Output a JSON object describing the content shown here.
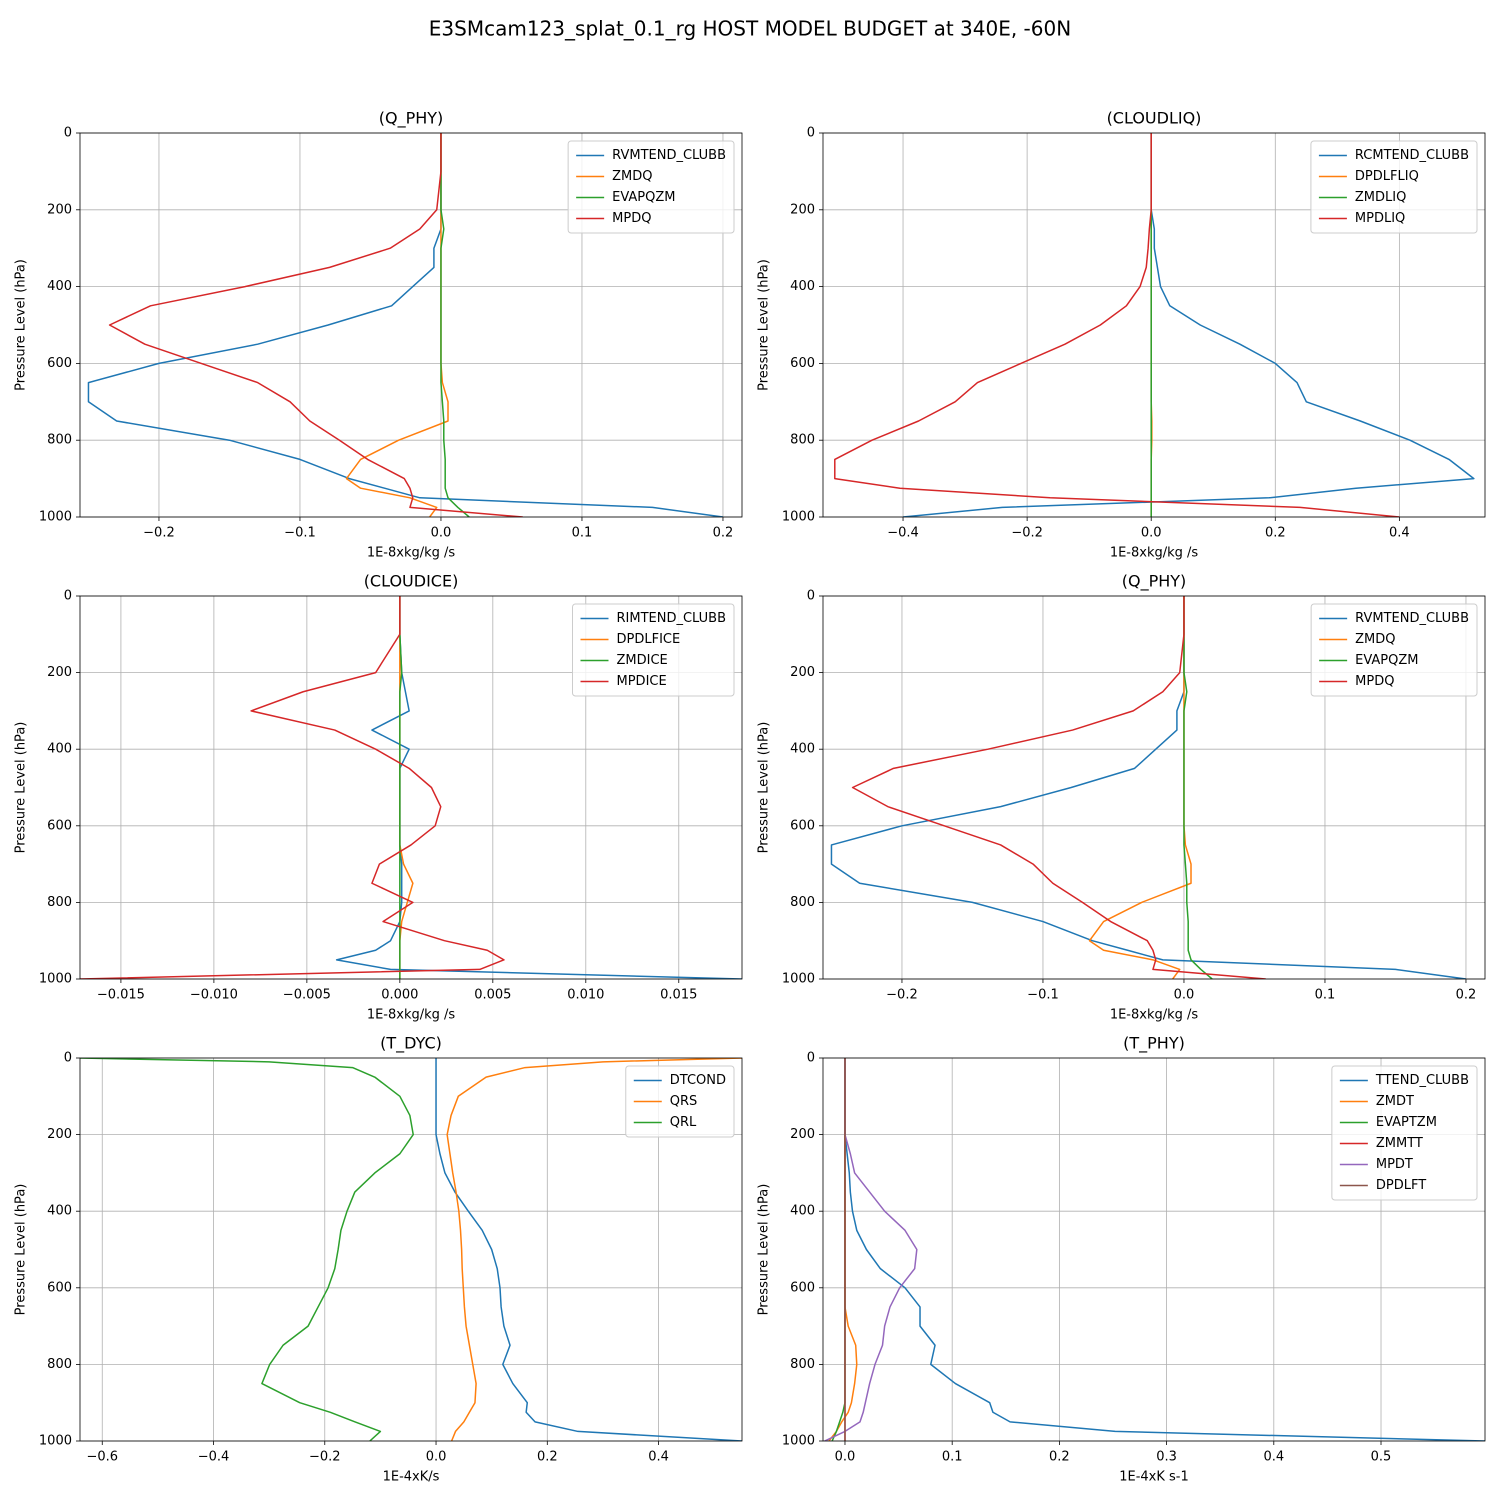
{
  "title": "E3SMcam123_splat_0.1_rg HOST MODEL BUDGET at 340E, -60N",
  "chart_data": [
    {
      "type": "line",
      "title": "(Q_PHY)",
      "xlabel": "1E-8xkg/kg /s",
      "ylabel": "Pressure Level (hPa)",
      "y": [
        0,
        100,
        200,
        250,
        300,
        350,
        400,
        450,
        500,
        550,
        600,
        650,
        700,
        750,
        800,
        850,
        900,
        925,
        950,
        975,
        1000
      ],
      "xlim": [
        -0.256,
        0.2135
      ],
      "ylim": [
        1000,
        0
      ],
      "xticks": [
        {
          "value": -0.2,
          "label": "−0.2"
        },
        {
          "value": -0.1,
          "label": "−0.1"
        },
        {
          "value": 0,
          "label": "0.0"
        },
        0.1,
        0.2
      ],
      "yticks": [
        0,
        200,
        400,
        600,
        800,
        1000
      ],
      "grid": true,
      "legend": "upper right",
      "series": [
        {
          "name": "RVMTEND_CLUBB",
          "color": "#1f77b4",
          "values": [
            0,
            0,
            0,
            0,
            -0.005,
            -0.005,
            -0.02,
            -0.035,
            -0.08,
            -0.13,
            -0.2,
            -0.25,
            -0.25,
            -0.23,
            -0.15,
            -0.1,
            -0.065,
            -0.04,
            -0.015,
            0.15,
            0.2
          ]
        },
        {
          "name": "ZMDQ",
          "color": "#ff7f0e",
          "values": [
            0,
            0,
            0,
            0,
            0,
            0,
            0,
            0,
            0,
            0,
            0,
            0.001,
            0.005,
            0.005,
            -0.03,
            -0.057,
            -0.067,
            -0.057,
            -0.022,
            -0.003,
            -0.008
          ]
        },
        {
          "name": "EVAPQZM",
          "color": "#2ca02c",
          "values": [
            0,
            0,
            0,
            0.002,
            0,
            0,
            0,
            0,
            0,
            0,
            0,
            0,
            0.001,
            0.002,
            0.002,
            0.003,
            0.003,
            0.003,
            0.005,
            0.012,
            0.02
          ]
        },
        {
          "name": "MPDQ",
          "color": "#d62728",
          "values": [
            0,
            0,
            -0.003,
            -0.015,
            -0.036,
            -0.079,
            -0.139,
            -0.206,
            -0.235,
            -0.21,
            -0.17,
            -0.13,
            -0.107,
            -0.093,
            -0.072,
            -0.052,
            -0.026,
            -0.022,
            -0.02,
            -0.022,
            0.058
          ]
        }
      ]
    },
    {
      "type": "line",
      "title": "(CLOUDLIQ)",
      "xlabel": "1E-8xkg/kg /s",
      "ylabel": "Pressure Level (hPa)",
      "y": [
        0,
        100,
        200,
        250,
        300,
        350,
        400,
        450,
        500,
        550,
        600,
        650,
        700,
        750,
        800,
        850,
        900,
        925,
        950,
        975,
        1000
      ],
      "xlim": [
        -0.529,
        0.538
      ],
      "ylim": [
        1000,
        0
      ],
      "xticks": [
        {
          "value": -0.4,
          "label": "−0.4"
        },
        {
          "value": -0.2,
          "label": "−0.2"
        },
        {
          "value": 0,
          "label": "0.0"
        },
        0.2,
        0.4
      ],
      "yticks": [
        0,
        200,
        400,
        600,
        800,
        1000
      ],
      "grid": true,
      "legend": "upper right",
      "series": [
        {
          "name": "RCMTEND_CLUBB",
          "color": "#1f77b4",
          "values": [
            0,
            0,
            0,
            0.005,
            0.005,
            0.01,
            0.015,
            0.03,
            0.079,
            0.143,
            0.2,
            0.235,
            0.25,
            0.337,
            0.417,
            0.48,
            0.52,
            0.33,
            0.19,
            -0.24,
            -0.4
          ]
        },
        {
          "name": "DPDLFLIQ",
          "color": "#ff7f0e",
          "values": [
            0,
            0,
            0,
            0,
            0,
            0,
            0,
            0,
            0,
            0,
            0,
            0,
            0,
            0.001,
            0.001,
            0,
            0,
            0,
            0,
            0,
            0
          ]
        },
        {
          "name": "ZMDLIQ",
          "color": "#2ca02c",
          "values": [
            0,
            0,
            0,
            0,
            0,
            0,
            0,
            0,
            0,
            0,
            0,
            0,
            0,
            0,
            0,
            0,
            0,
            0,
            0,
            0,
            0
          ]
        },
        {
          "name": "MPDLIQ",
          "color": "#d62728",
          "values": [
            0,
            0,
            0,
            -0.003,
            -0.005,
            -0.008,
            -0.018,
            -0.04,
            -0.082,
            -0.139,
            -0.21,
            -0.28,
            -0.316,
            -0.375,
            -0.45,
            -0.51,
            -0.51,
            -0.405,
            -0.163,
            0.24,
            0.4
          ]
        }
      ]
    },
    {
      "type": "line",
      "title": "(CLOUDICE)",
      "xlabel": "1E-8xkg/kg /s",
      "ylabel": "Pressure Level (hPa)",
      "y": [
        0,
        100,
        200,
        250,
        300,
        350,
        400,
        450,
        500,
        550,
        600,
        650,
        700,
        750,
        800,
        850,
        900,
        925,
        950,
        975,
        1000
      ],
      "xlim": [
        -0.0172,
        0.0184
      ],
      "ylim": [
        1000,
        0
      ],
      "xticks": [
        {
          "value": -0.015,
          "label": "−0.015"
        },
        {
          "value": -0.01,
          "label": "−0.010"
        },
        {
          "value": -0.005,
          "label": "−0.005"
        },
        {
          "value": 0,
          "label": "0.000"
        },
        0.005,
        {
          "value": 0.01,
          "label": "0.010"
        },
        0.015
      ],
      "yticks": [
        0,
        200,
        400,
        600,
        800,
        1000
      ],
      "grid": true,
      "legend": "upper right",
      "series": [
        {
          "name": "RIMTEND_CLUBB",
          "color": "#1f77b4",
          "values": [
            0,
            0,
            0.0001,
            0.0003,
            0.0005,
            -0.0015,
            0.0005,
            0,
            0,
            0,
            0,
            0,
            0.0001,
            0.0001,
            0.0001,
            0,
            -0.0005,
            -0.0013,
            -0.0034,
            -0.0005,
            0.0184
          ]
        },
        {
          "name": "DPDLFICE",
          "color": "#ff7f0e",
          "values": [
            0,
            0,
            0,
            0,
            0,
            0,
            0,
            0,
            0,
            0,
            0,
            0,
            0.0002,
            0.0007,
            0.0004,
            0.0001,
            0,
            0,
            0,
            0,
            0
          ]
        },
        {
          "name": "ZMDICE",
          "color": "#2ca02c",
          "values": [
            0,
            0,
            0.0001,
            0,
            0,
            0,
            0,
            0,
            0,
            0,
            0,
            0,
            0,
            0,
            0,
            0,
            0,
            0,
            0,
            0,
            0
          ]
        },
        {
          "name": "MPDICE",
          "color": "#d62728",
          "values": [
            0,
            0,
            -0.0013,
            -0.0052,
            -0.008,
            -0.0035,
            -0.0013,
            0.0005,
            0.0017,
            0.0022,
            0.0019,
            0.0006,
            -0.0011,
            -0.0015,
            0.0007,
            -0.0009,
            0.0024,
            0.0047,
            0.0056,
            0.0043,
            -0.0172
          ]
        }
      ]
    },
    {
      "type": "line",
      "title": "(Q_PHY)",
      "xlabel": "1E-8xkg/kg /s",
      "ylabel": "Pressure Level (hPa)",
      "y": [
        0,
        100,
        200,
        250,
        300,
        350,
        400,
        450,
        500,
        550,
        600,
        650,
        700,
        750,
        800,
        850,
        900,
        925,
        950,
        975,
        1000
      ],
      "xlim": [
        -0.256,
        0.2135
      ],
      "ylim": [
        1000,
        0
      ],
      "xticks": [
        {
          "value": -0.2,
          "label": "−0.2"
        },
        {
          "value": -0.1,
          "label": "−0.1"
        },
        {
          "value": 0,
          "label": "0.0"
        },
        0.1,
        0.2
      ],
      "yticks": [
        0,
        200,
        400,
        600,
        800,
        1000
      ],
      "grid": true,
      "legend": "upper right",
      "series": [
        {
          "name": "RVMTEND_CLUBB",
          "color": "#1f77b4",
          "values": [
            0,
            0,
            0,
            0,
            -0.005,
            -0.005,
            -0.02,
            -0.035,
            -0.08,
            -0.13,
            -0.2,
            -0.25,
            -0.25,
            -0.23,
            -0.15,
            -0.1,
            -0.065,
            -0.04,
            -0.015,
            0.15,
            0.2
          ]
        },
        {
          "name": "ZMDQ",
          "color": "#ff7f0e",
          "values": [
            0,
            0,
            0,
            0,
            0,
            0,
            0,
            0,
            0,
            0,
            0,
            0.001,
            0.005,
            0.005,
            -0.03,
            -0.057,
            -0.067,
            -0.057,
            -0.022,
            -0.003,
            -0.008
          ]
        },
        {
          "name": "EVAPQZM",
          "color": "#2ca02c",
          "values": [
            0,
            0,
            0,
            0.002,
            0,
            0,
            0,
            0,
            0,
            0,
            0,
            0,
            0.001,
            0.002,
            0.002,
            0.003,
            0.003,
            0.003,
            0.005,
            0.012,
            0.02
          ]
        },
        {
          "name": "MPDQ",
          "color": "#d62728",
          "values": [
            0,
            0,
            -0.003,
            -0.015,
            -0.036,
            -0.079,
            -0.139,
            -0.206,
            -0.235,
            -0.21,
            -0.17,
            -0.13,
            -0.107,
            -0.093,
            -0.072,
            -0.052,
            -0.026,
            -0.022,
            -0.02,
            -0.022,
            0.058
          ]
        }
      ]
    },
    {
      "type": "line",
      "title": "(T_DYC)",
      "xlabel": "1E-4xK/s",
      "ylabel": "Pressure Level (hPa)",
      "y": [
        0,
        10,
        25,
        50,
        100,
        150,
        200,
        250,
        300,
        350,
        400,
        450,
        500,
        550,
        600,
        650,
        700,
        750,
        800,
        850,
        900,
        925,
        950,
        975,
        1000
      ],
      "xlim": [
        -0.64,
        0.55
      ],
      "ylim": [
        1000,
        0
      ],
      "xticks": [
        {
          "value": -0.6,
          "label": "−0.6"
        },
        {
          "value": -0.4,
          "label": "−0.4"
        },
        {
          "value": -0.2,
          "label": "−0.2"
        },
        {
          "value": 0,
          "label": "0.0"
        },
        0.2,
        0.4
      ],
      "yticks": [
        0,
        200,
        400,
        600,
        800,
        1000
      ],
      "grid": true,
      "legend": "upper right",
      "series": [
        {
          "name": "DTCOND",
          "color": "#1f77b4",
          "values": [
            0,
            0,
            0,
            0,
            0,
            0,
            0,
            0.007,
            0.016,
            0.034,
            0.058,
            0.083,
            0.1,
            0.11,
            0.115,
            0.117,
            0.122,
            0.133,
            0.12,
            0.138,
            0.164,
            0.162,
            0.178,
            0.255,
            0.55
          ]
        },
        {
          "name": "QRS",
          "color": "#ff7f0e",
          "values": [
            0.55,
            0.3,
            0.16,
            0.09,
            0.04,
            0.027,
            0.02,
            0.025,
            0.03,
            0.036,
            0.041,
            0.044,
            0.046,
            0.047,
            0.049,
            0.051,
            0.054,
            0.06,
            0.066,
            0.072,
            0.07,
            0.06,
            0.05,
            0.035,
            0.028
          ]
        },
        {
          "name": "QRL",
          "color": "#2ca02c",
          "values": [
            -0.64,
            -0.3,
            -0.15,
            -0.11,
            -0.065,
            -0.047,
            -0.041,
            -0.065,
            -0.11,
            -0.146,
            -0.16,
            -0.171,
            -0.176,
            -0.182,
            -0.194,
            -0.212,
            -0.23,
            -0.275,
            -0.299,
            -0.313,
            -0.245,
            -0.19,
            -0.146,
            -0.1,
            -0.119
          ]
        }
      ]
    },
    {
      "type": "line",
      "title": "(T_PHY)",
      "xlabel": "1E-4xK s-1",
      "ylabel": "Pressure Level (hPa)",
      "y": [
        0,
        100,
        200,
        250,
        300,
        350,
        400,
        450,
        500,
        550,
        600,
        650,
        700,
        750,
        800,
        850,
        900,
        925,
        950,
        975,
        1000
      ],
      "xlim": [
        -0.0205,
        0.597
      ],
      "ylim": [
        1000,
        0
      ],
      "xticks": [
        {
          "value": 0,
          "label": "0.0"
        },
        0.1,
        0.2,
        0.3,
        0.4,
        0.5
      ],
      "yticks": [
        0,
        200,
        400,
        600,
        800,
        1000
      ],
      "grid": true,
      "legend": "upper right",
      "series": [
        {
          "name": "TTEND_CLUBB",
          "color": "#1f77b4",
          "values": [
            0,
            0,
            0,
            0.002,
            0.004,
            0.005,
            0.007,
            0.011,
            0.02,
            0.033,
            0.056,
            0.07,
            0.07,
            0.084,
            0.08,
            0.103,
            0.135,
            0.138,
            0.154,
            0.252,
            0.597
          ]
        },
        {
          "name": "ZMDT",
          "color": "#ff7f0e",
          "values": [
            0,
            0,
            0,
            0,
            0,
            0,
            0,
            0,
            0,
            0,
            0,
            0,
            0.003,
            0.01,
            0.011,
            0.009,
            0.006,
            0.003,
            -0.003,
            -0.008,
            -0.015
          ]
        },
        {
          "name": "EVAPTZM",
          "color": "#2ca02c",
          "values": [
            0,
            0,
            0,
            0,
            0,
            0,
            0,
            0,
            0,
            0,
            0,
            0,
            0,
            0,
            0,
            0,
            0,
            -0.002,
            -0.005,
            -0.008,
            -0.012
          ]
        },
        {
          "name": "ZMMTT",
          "color": "#d62728",
          "values": [
            0,
            0,
            0,
            0,
            0,
            0,
            0,
            0,
            0,
            0,
            0,
            0,
            0,
            0,
            0,
            0,
            0,
            0,
            0,
            0,
            0
          ]
        },
        {
          "name": "MPDT",
          "color": "#9467bd",
          "values": [
            0,
            0,
            0,
            0.005,
            0.009,
            0.023,
            0.037,
            0.056,
            0.067,
            0.065,
            0.051,
            0.042,
            0.037,
            0.035,
            0.028,
            0.023,
            0.019,
            0.017,
            0.014,
            0,
            -0.019
          ]
        },
        {
          "name": "DPDLFT",
          "color": "#8c564b",
          "values": [
            0,
            0,
            0,
            0,
            0,
            0,
            0,
            0,
            0,
            0,
            0,
            0,
            0,
            0,
            0,
            0,
            0,
            0,
            0,
            0,
            0
          ]
        }
      ]
    }
  ]
}
